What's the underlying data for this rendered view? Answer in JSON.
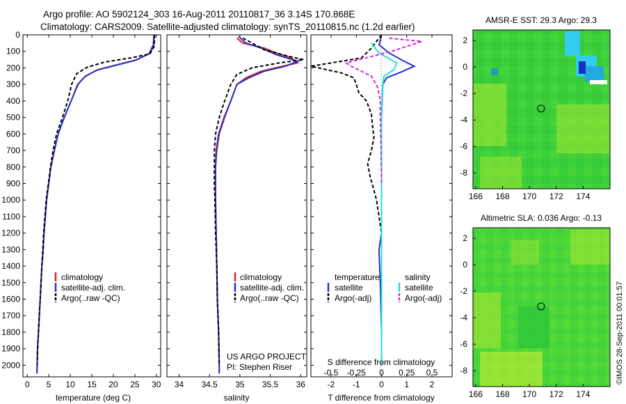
{
  "header": {
    "title_line1": "Argo profile: AO 5902124_303 16-Aug-2011 20110817_36 3.14S 170.868E",
    "title_line2": "Climatology: CARS2009. Satellite-adjusted climatology: synTS_20110815.nc (1.2d earlier)"
  },
  "colors": {
    "climatology": "#dd2222",
    "satellite": "#2233cc",
    "argo": "#000000",
    "sal_satellite": "#22dddd",
    "sal_argo": "#dd22dd",
    "map_green": "#33cc33",
    "map_yellowgreen": "#99e633",
    "map_blue": "#1133bb",
    "map_cyan": "#33ccee"
  },
  "footer": {
    "credit": "©IMOS 28-Sep-2011 00:01:57"
  },
  "chart_data": [
    {
      "type": "line",
      "panel": "temperature",
      "xlabel": "temperature (deg C)",
      "xlim": [
        -1,
        31
      ],
      "xticks": [
        "0",
        "5",
        "10",
        "15",
        "20",
        "25",
        "30"
      ],
      "ylim": [
        2070,
        0
      ],
      "yticks": [
        "0",
        "100",
        "200",
        "300",
        "400",
        "500",
        "600",
        "700",
        "800",
        "900",
        "1000",
        "1100",
        "1200",
        "1300",
        "1400",
        "1500",
        "1600",
        "1700",
        "1800",
        "1900",
        "2000"
      ],
      "legend": [
        "climatology",
        "satellite-adj. clim.",
        "Argo(..raw -QC)"
      ],
      "series": [
        {
          "name": "climatology",
          "style": "solid",
          "color": "#dd2222",
          "points": [
            [
              29.5,
              0
            ],
            [
              29.4,
              60
            ],
            [
              28.6,
              110
            ],
            [
              25.5,
              150
            ],
            [
              21,
              180
            ],
            [
              16.5,
              210
            ],
            [
              13.5,
              250
            ],
            [
              11.8,
              300
            ],
            [
              10.2,
              400
            ],
            [
              8.6,
              500
            ],
            [
              7.2,
              600
            ],
            [
              6.3,
              700
            ],
            [
              5.5,
              800
            ],
            [
              5.0,
              900
            ],
            [
              4.5,
              1000
            ],
            [
              4.2,
              1100
            ],
            [
              3.9,
              1200
            ],
            [
              3.7,
              1300
            ],
            [
              3.4,
              1400
            ],
            [
              3.2,
              1500
            ],
            [
              3.0,
              1600
            ],
            [
              2.8,
              1700
            ],
            [
              2.6,
              1800
            ],
            [
              2.4,
              1900
            ],
            [
              2.3,
              2000
            ],
            [
              2.25,
              2050
            ]
          ]
        },
        {
          "name": "satellite-adj. clim.",
          "style": "solid",
          "color": "#2233cc",
          "points": [
            [
              29.4,
              0
            ],
            [
              29.3,
              60
            ],
            [
              28.3,
              115
            ],
            [
              25,
              155
            ],
            [
              20.5,
              185
            ],
            [
              16,
              215
            ],
            [
              13.3,
              255
            ],
            [
              11.7,
              300
            ],
            [
              10.2,
              400
            ],
            [
              8.6,
              500
            ],
            [
              7.2,
              600
            ],
            [
              6.3,
              700
            ],
            [
              5.5,
              800
            ],
            [
              5.0,
              900
            ],
            [
              4.5,
              1000
            ],
            [
              4.2,
              1100
            ],
            [
              3.9,
              1200
            ],
            [
              3.7,
              1300
            ],
            [
              3.4,
              1400
            ],
            [
              3.2,
              1500
            ],
            [
              3.0,
              1600
            ],
            [
              2.8,
              1700
            ],
            [
              2.6,
              1800
            ],
            [
              2.4,
              1900
            ],
            [
              2.3,
              2000
            ],
            [
              2.25,
              2050
            ]
          ]
        },
        {
          "name": "Argo(..raw -QC)",
          "style": "dashed",
          "color": "#000000",
          "points": [
            [
              29.6,
              0
            ],
            [
              29.5,
              70
            ],
            [
              28.5,
              115
            ],
            [
              24,
              140
            ],
            [
              18,
              165
            ],
            [
              14,
              195
            ],
            [
              11.5,
              235
            ],
            [
              10.3,
              300
            ],
            [
              9.4,
              400
            ],
            [
              8.2,
              500
            ],
            [
              6.8,
              600
            ],
            [
              6.0,
              700
            ],
            [
              5.4,
              800
            ],
            [
              4.9,
              900
            ],
            [
              4.4,
              1000
            ],
            [
              4.1,
              1100
            ],
            [
              3.8,
              1200
            ],
            [
              3.6,
              1300
            ],
            [
              3.4,
              1400
            ],
            [
              3.2,
              1500
            ],
            [
              3.0,
              1600
            ],
            [
              2.8,
              1700
            ],
            [
              2.6,
              1800
            ],
            [
              2.4,
              1900
            ],
            [
              2.3,
              2000
            ]
          ]
        }
      ]
    },
    {
      "type": "line",
      "panel": "salinity",
      "xlabel": "salinity",
      "xlim": [
        33.8,
        36.1
      ],
      "xticks": [
        "34",
        "34.5",
        "35",
        "35.5",
        "36"
      ],
      "ylim": [
        2070,
        0
      ],
      "legend": [
        "climatology",
        "satellite-adj. clim.",
        "Argo(..raw -QC)"
      ],
      "annotation_line1": "US ARGO PROJECT",
      "annotation_line2": "PI: Stephen Riser",
      "series": [
        {
          "name": "climatology",
          "style": "solid",
          "color": "#dd2222",
          "points": [
            [
              34.95,
              20
            ],
            [
              35.05,
              50
            ],
            [
              35.4,
              80
            ],
            [
              35.6,
              110
            ],
            [
              35.85,
              140
            ],
            [
              35.95,
              170
            ],
            [
              35.7,
              190
            ],
            [
              35.35,
              220
            ],
            [
              35.1,
              260
            ],
            [
              34.95,
              300
            ],
            [
              34.85,
              400
            ],
            [
              34.75,
              500
            ],
            [
              34.66,
              600
            ],
            [
              34.62,
              700
            ],
            [
              34.6,
              800
            ],
            [
              34.6,
              900
            ],
            [
              34.6,
              1000
            ],
            [
              34.61,
              1200
            ],
            [
              34.62,
              1400
            ],
            [
              34.63,
              1600
            ],
            [
              34.65,
              1800
            ],
            [
              34.66,
              2000
            ],
            [
              34.66,
              2050
            ]
          ]
        },
        {
          "name": "satellite-adj. clim.",
          "style": "solid",
          "color": "#2233cc",
          "points": [
            [
              34.98,
              10
            ],
            [
              35.1,
              50
            ],
            [
              35.35,
              80
            ],
            [
              35.6,
              120
            ],
            [
              35.95,
              160
            ],
            [
              35.75,
              190
            ],
            [
              35.4,
              220
            ],
            [
              35.15,
              260
            ],
            [
              34.95,
              300
            ],
            [
              34.85,
              400
            ],
            [
              34.74,
              500
            ],
            [
              34.65,
              600
            ],
            [
              34.61,
              700
            ],
            [
              34.6,
              800
            ],
            [
              34.6,
              900
            ],
            [
              34.6,
              1000
            ],
            [
              34.61,
              1200
            ],
            [
              34.62,
              1400
            ],
            [
              34.63,
              1600
            ],
            [
              34.65,
              1800
            ],
            [
              34.66,
              2000
            ],
            [
              34.66,
              2050
            ]
          ]
        },
        {
          "name": "Argo(..raw -QC)",
          "style": "dashed",
          "color": "#000000",
          "points": [
            [
              35.05,
              20
            ],
            [
              35.4,
              90
            ],
            [
              35.8,
              130
            ],
            [
              36.05,
              150
            ],
            [
              35.65,
              170
            ],
            [
              35.2,
              200
            ],
            [
              34.95,
              240
            ],
            [
              34.85,
              300
            ],
            [
              34.75,
              400
            ],
            [
              34.66,
              500
            ],
            [
              34.6,
              600
            ],
            [
              34.58,
              700
            ],
            [
              34.58,
              800
            ],
            [
              34.58,
              900
            ],
            [
              34.59,
              1000
            ],
            [
              34.6,
              1200
            ],
            [
              34.62,
              1400
            ],
            [
              34.63,
              1600
            ],
            [
              34.65,
              1800
            ],
            [
              34.66,
              2000
            ]
          ]
        }
      ]
    },
    {
      "type": "line",
      "panel": "difference",
      "xlabel": "T difference from climatology",
      "xlabel_top": "S difference from climatology",
      "xlim": [
        -2.8,
        2.8
      ],
      "xticks": [
        "-2",
        "-1",
        "0",
        "1",
        "2"
      ],
      "xticks_top": [
        "-0.5",
        "-0.25",
        "0",
        "0.25",
        "0.5"
      ],
      "ylim": [
        2070,
        0
      ],
      "legend_left_title": "temperature",
      "legend_right_title": "salinity",
      "legend": [
        "satellite",
        "Argo(-adj)",
        "satellite",
        "Argo(-adj)"
      ],
      "series": [
        {
          "name": "satellite",
          "group": "temperature",
          "style": "solid",
          "color": "#2233cc",
          "points": [
            [
              0,
              10
            ],
            [
              -0.1,
              60
            ],
            [
              0.3,
              110
            ],
            [
              0.9,
              160
            ],
            [
              1.3,
              190
            ],
            [
              0.7,
              230
            ],
            [
              0.2,
              260
            ],
            [
              0.05,
              300
            ],
            [
              0,
              500
            ],
            [
              0,
              800
            ],
            [
              0,
              1200
            ],
            [
              -0.1,
              1300
            ],
            [
              -0.05,
              1500
            ],
            [
              0,
              1800
            ],
            [
              0,
              2000
            ]
          ]
        },
        {
          "name": "Argo(-adj)",
          "group": "temperature",
          "style": "dashed",
          "color": "#000000",
          "points": [
            [
              0,
              0
            ],
            [
              -0.4,
              80
            ],
            [
              -0.8,
              140
            ],
            [
              -2.8,
              190
            ],
            [
              -1.6,
              230
            ],
            [
              -1.1,
              260
            ],
            [
              -1.0,
              300
            ],
            [
              -0.9,
              350
            ],
            [
              -0.6,
              400
            ],
            [
              -0.4,
              480
            ],
            [
              -0.35,
              560
            ],
            [
              -0.3,
              620
            ],
            [
              -0.4,
              700
            ],
            [
              -0.55,
              780
            ],
            [
              -0.45,
              860
            ],
            [
              -0.3,
              940
            ],
            [
              -0.2,
              1000
            ],
            [
              -0.1,
              1100
            ],
            [
              0,
              1200
            ],
            [
              0,
              1400
            ],
            [
              0,
              1600
            ],
            [
              0,
              1800
            ],
            [
              0,
              2000
            ]
          ]
        },
        {
          "name": "satellite",
          "group": "salinity",
          "style": "solid",
          "color": "#22dddd",
          "points": [
            [
              -0.4,
              50
            ],
            [
              -0.1,
              110
            ],
            [
              0.6,
              170
            ],
            [
              0.5,
              210
            ],
            [
              0.1,
              250
            ],
            [
              0.05,
              300
            ],
            [
              0.02,
              400
            ],
            [
              0,
              500
            ],
            [
              0,
              800
            ],
            [
              0,
              1100
            ],
            [
              0,
              1400
            ],
            [
              0,
              1700
            ],
            [
              0,
              2000
            ]
          ]
        },
        {
          "name": "Argo(-adj)",
          "group": "salinity",
          "style": "dashed",
          "color": "#dd22dd",
          "points": [
            [
              0.3,
              20
            ],
            [
              1.6,
              40
            ],
            [
              1.0,
              70
            ],
            [
              0.4,
              100
            ],
            [
              -1.4,
              170
            ],
            [
              -1.2,
              190
            ],
            [
              -0.4,
              250
            ],
            [
              -0.15,
              320
            ],
            [
              -0.05,
              400
            ],
            [
              -0.05,
              500
            ],
            [
              -0.02,
              700
            ],
            [
              0,
              900
            ]
          ]
        }
      ]
    },
    {
      "type": "heatmap",
      "panel": "sst_map",
      "title": "AMSR-E SST: 29.3 Argo: 29.3",
      "xlim": [
        165.8,
        176
      ],
      "ylim": [
        -9.2,
        2.8
      ],
      "xticks": [
        "166",
        "168",
        "170",
        "172",
        "174"
      ],
      "yticks": [
        "2",
        "0",
        "-2",
        "-4",
        "-6",
        "-8"
      ],
      "marker": {
        "x": 170.868,
        "y": -3.14
      }
    },
    {
      "type": "heatmap",
      "panel": "sla_map",
      "title": "Altimetric SLA: 0.036 Argo: -0.13",
      "xlim": [
        165.8,
        176
      ],
      "ylim": [
        -9.2,
        2.8
      ],
      "xticks": [
        "166",
        "168",
        "170",
        "172",
        "174"
      ],
      "yticks": [
        "2",
        "0",
        "-2",
        "-4",
        "-6",
        "-8"
      ],
      "marker": {
        "x": 170.868,
        "y": -3.14
      }
    }
  ]
}
